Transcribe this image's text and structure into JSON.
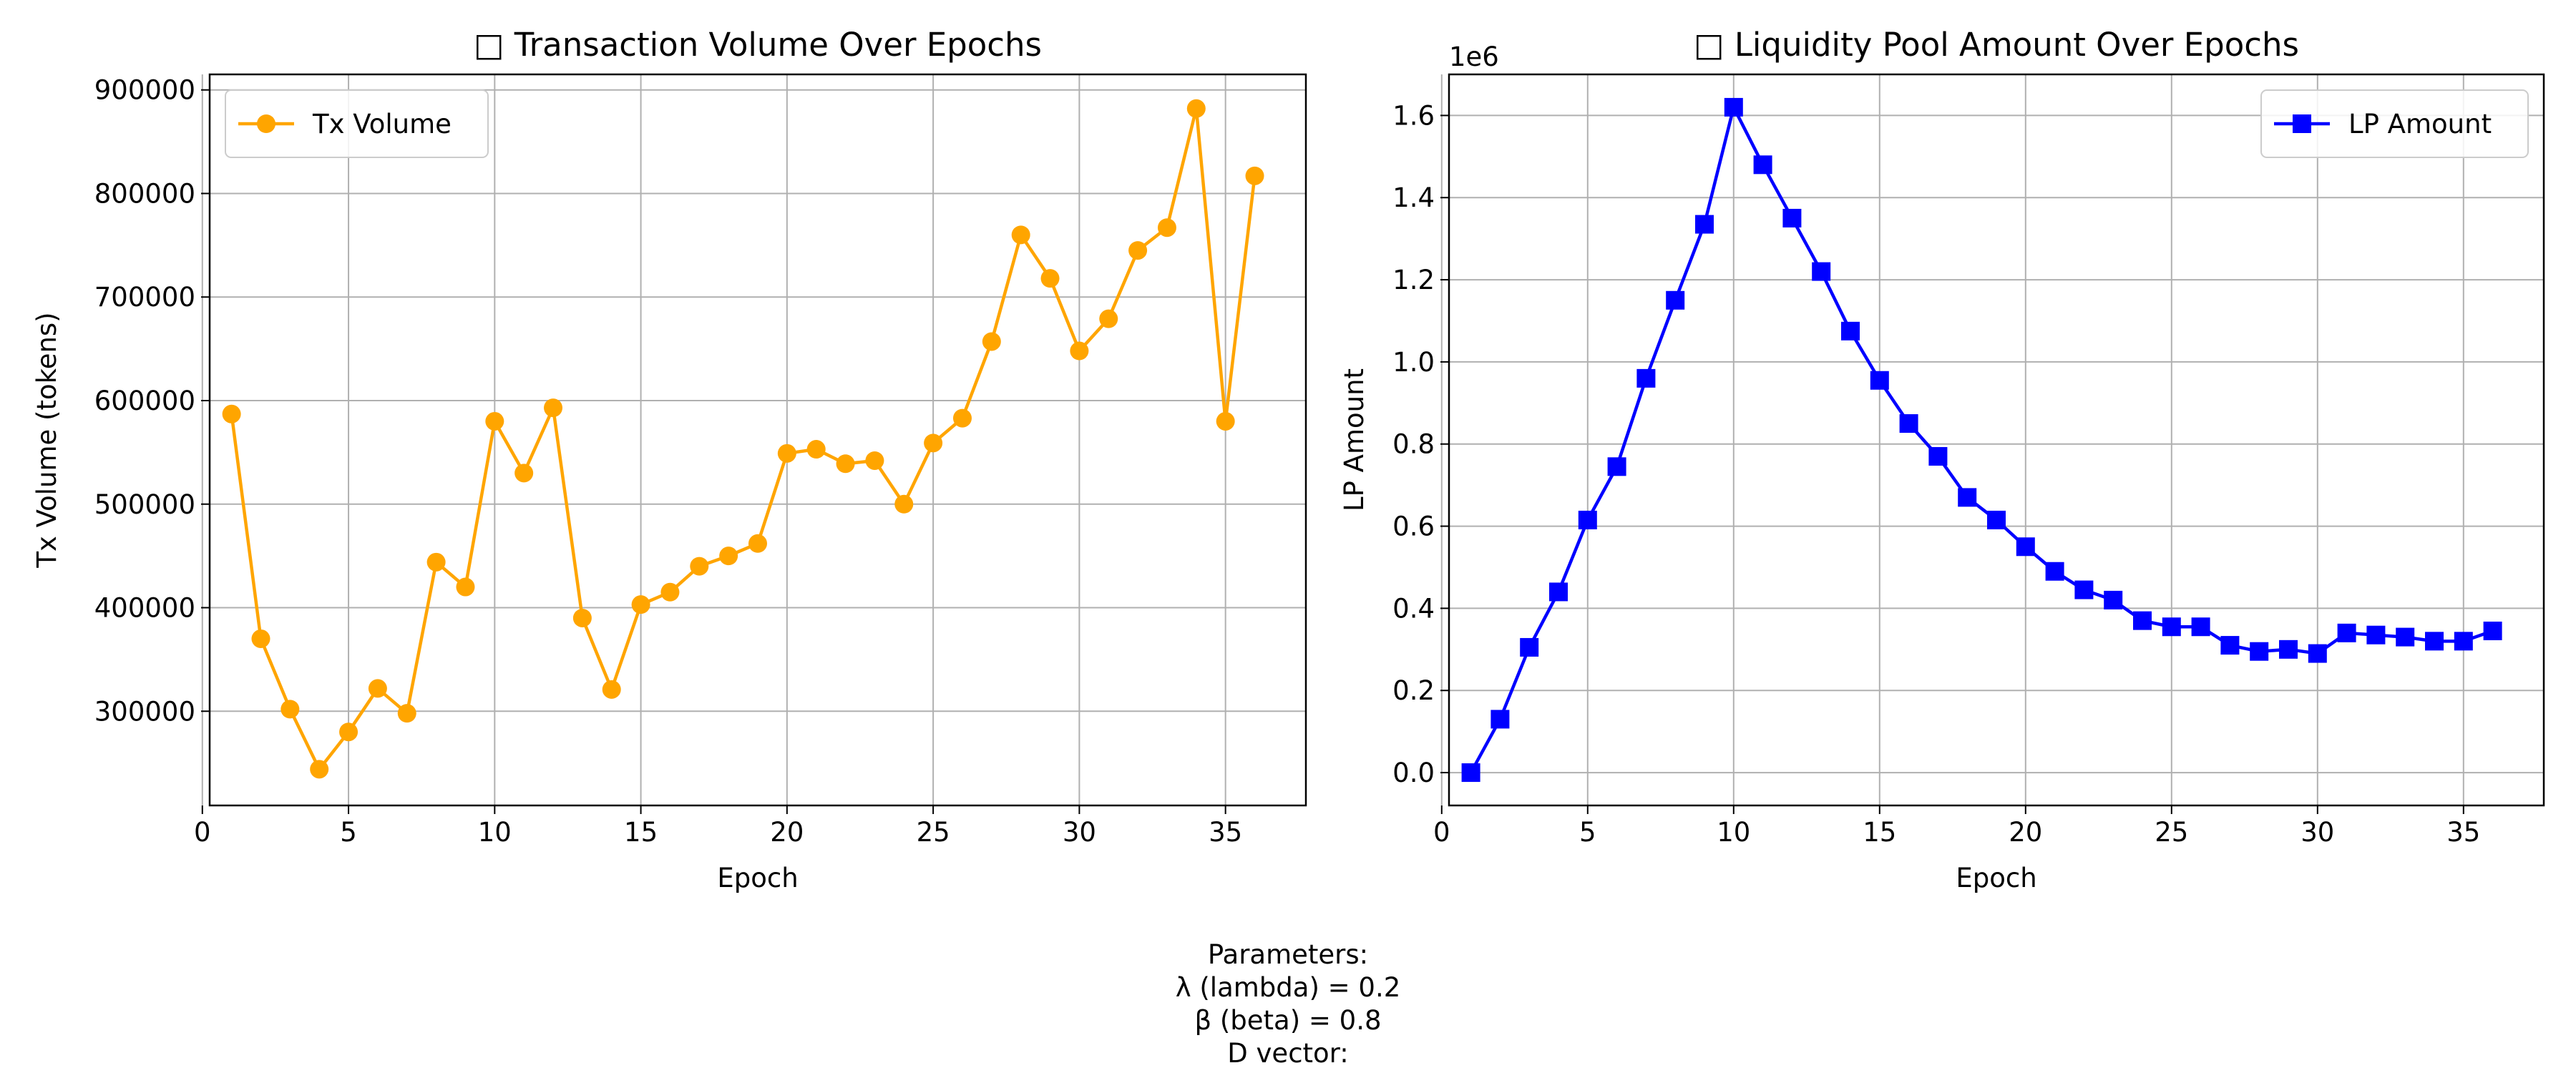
{
  "chart_data": [
    {
      "type": "line",
      "title": "□ Transaction Volume Over Epochs",
      "xlabel": "Epoch",
      "ylabel": "Tx Volume (tokens)",
      "xlim": [
        0.25,
        37.75
      ],
      "ylim": [
        209000,
        915000
      ],
      "xticks": [
        0,
        5,
        10,
        15,
        20,
        25,
        30,
        35
      ],
      "yticks": [
        300000,
        400000,
        500000,
        600000,
        700000,
        800000,
        900000
      ],
      "ytick_labels": [
        "300000",
        "400000",
        "500000",
        "600000",
        "700000",
        "800000",
        "900000"
      ],
      "grid": true,
      "legend_position": "top-left",
      "series": [
        {
          "name": "Tx Volume",
          "color": "#FFA500",
          "marker": "circle",
          "x": [
            1,
            2,
            3,
            4,
            5,
            6,
            7,
            8,
            9,
            10,
            11,
            12,
            13,
            14,
            15,
            16,
            17,
            18,
            19,
            20,
            21,
            22,
            23,
            24,
            25,
            26,
            27,
            28,
            29,
            30,
            31,
            32,
            33,
            34,
            35,
            36
          ],
          "values": [
            587000,
            370000,
            302000,
            244000,
            280000,
            322000,
            298000,
            444000,
            420000,
            580000,
            530000,
            593000,
            390000,
            321000,
            403000,
            415000,
            440000,
            450000,
            462000,
            549000,
            553000,
            539000,
            542000,
            500000,
            559000,
            583000,
            657000,
            760000,
            718000,
            648000,
            679000,
            745000,
            767000,
            882000,
            580000,
            817000
          ]
        }
      ]
    },
    {
      "type": "line",
      "title": "□ Liquidity Pool Amount Over Epochs",
      "xlabel": "Epoch",
      "ylabel": "LP Amount",
      "offset_text": "1e6",
      "xlim": [
        0.25,
        37.75
      ],
      "ylim": [
        -0.08,
        1.7
      ],
      "xticks": [
        0,
        5,
        10,
        15,
        20,
        25,
        30,
        35
      ],
      "yticks": [
        0.0,
        0.2,
        0.4,
        0.6,
        0.8,
        1.0,
        1.2,
        1.4,
        1.6
      ],
      "ytick_labels": [
        "0.0",
        "0.2",
        "0.4",
        "0.6",
        "0.8",
        "1.0",
        "1.2",
        "1.4",
        "1.6"
      ],
      "grid": true,
      "legend_position": "top-right",
      "series": [
        {
          "name": "LP Amount",
          "color": "#0000FF",
          "marker": "square",
          "x": [
            1,
            2,
            3,
            4,
            5,
            6,
            7,
            8,
            9,
            10,
            11,
            12,
            13,
            14,
            15,
            16,
            17,
            18,
            19,
            20,
            21,
            22,
            23,
            24,
            25,
            26,
            27,
            28,
            29,
            30,
            31,
            32,
            33,
            34,
            35,
            36
          ],
          "values": [
            0.0,
            0.13,
            0.305,
            0.44,
            0.615,
            0.745,
            0.96,
            1.15,
            1.335,
            1.62,
            1.48,
            1.35,
            1.22,
            1.075,
            0.955,
            0.85,
            0.77,
            0.67,
            0.615,
            0.55,
            0.49,
            0.445,
            0.42,
            0.37,
            0.355,
            0.355,
            0.31,
            0.295,
            0.3,
            0.29,
            0.34,
            0.335,
            0.33,
            0.32,
            0.32,
            0.345
          ]
        }
      ]
    }
  ],
  "caption": {
    "lines": [
      "Parameters:",
      "λ (lambda) = 0.2",
      "β (beta) = 0.8",
      "D vector:"
    ]
  }
}
